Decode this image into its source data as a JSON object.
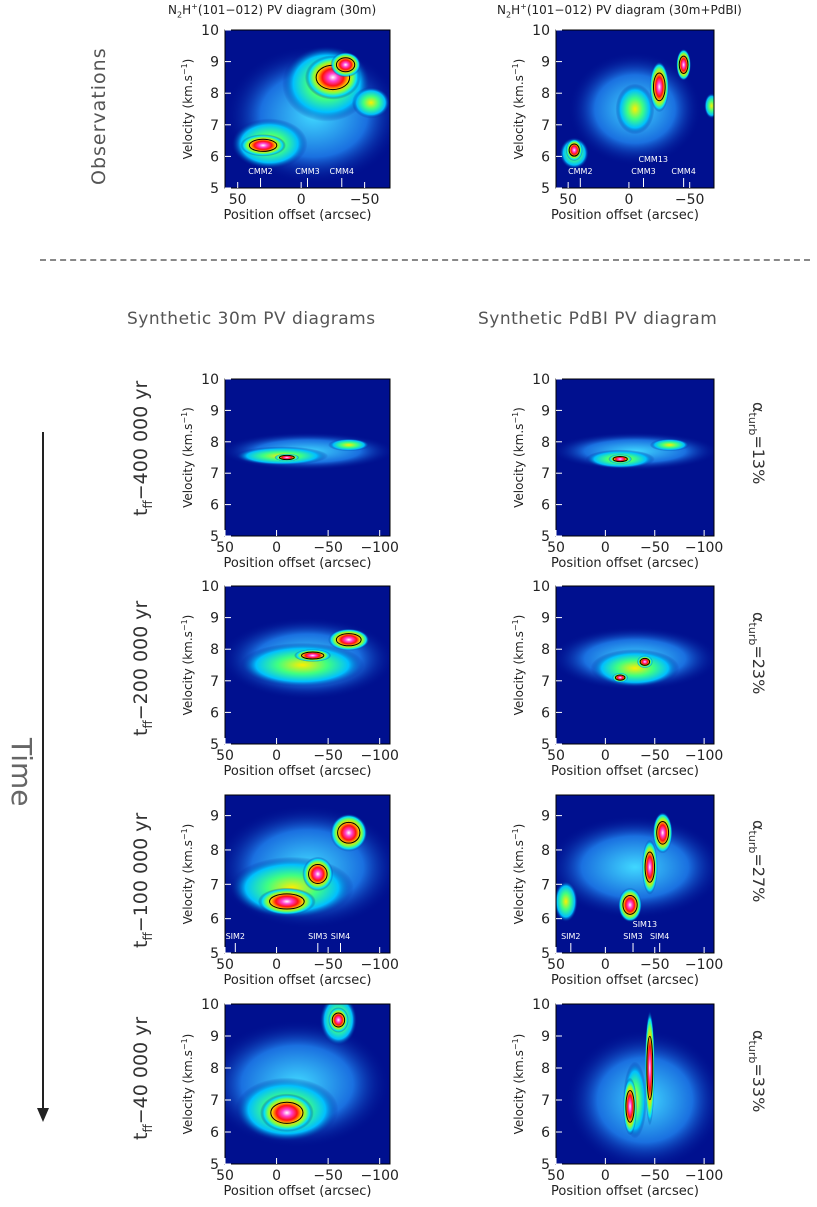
{
  "observations": {
    "row_label": "Observations",
    "left_title_prefix": "N",
    "left_title_sub": "2",
    "left_title_mid": "H",
    "left_title_sup": "+",
    "left_title_rest": "(101−012) PV diagram (30m)",
    "right_title_rest": "(101−012) PV diagram (30m+PdBI)",
    "left_cores": [
      "CMM2",
      "CMM3",
      "CMM4"
    ],
    "right_cores": [
      "CMM2",
      "CMM3",
      "CMM4"
    ],
    "right_extra_core": "CMM13"
  },
  "section_titles": {
    "left": "Synthetic 30m PV diagrams",
    "right": "Synthetic PdBI PV diagram"
  },
  "time_label": "Time",
  "axis": {
    "xlabel": "Position offset (arcsec)",
    "ylabel_main": "Velocity (km.s",
    "ylabel_sup": "−1",
    "ylabel_close": ")"
  },
  "rows": [
    {
      "t_prefix": "t",
      "t_sub": "ff",
      "t_value": "−400 000 yr",
      "alpha_sym": "α",
      "alpha_sub": "turb",
      "alpha_value": "=13%"
    },
    {
      "t_prefix": "t",
      "t_sub": "ff",
      "t_value": "−200 000 yr",
      "alpha_sym": "α",
      "alpha_sub": "turb",
      "alpha_value": "=23%"
    },
    {
      "t_prefix": "t",
      "t_sub": "ff",
      "t_value": "−100 000 yr",
      "alpha_sym": "α",
      "alpha_sub": "turb",
      "alpha_value": "=27%"
    },
    {
      "t_prefix": "t",
      "t_sub": "ff",
      "t_value": "−40 000 yr",
      "alpha_sym": "α",
      "alpha_sub": "turb",
      "alpha_value": "=33%"
    }
  ],
  "sim_cores": [
    "SIM2",
    "SIM3",
    "SIM4"
  ],
  "sim_extra_core": "SIM13",
  "obs_x_ticks": [
    "50",
    "0",
    "−50"
  ],
  "syn_x_ticks": [
    "50",
    "0",
    "−50",
    "−100"
  ],
  "y_ticks_5_10": [
    "5",
    "6",
    "7",
    "8",
    "9",
    "10"
  ],
  "y_ticks_5_9": [
    "5",
    "6",
    "7",
    "8",
    "9"
  ],
  "colors": {
    "background_blue": "#00108f"
  }
}
